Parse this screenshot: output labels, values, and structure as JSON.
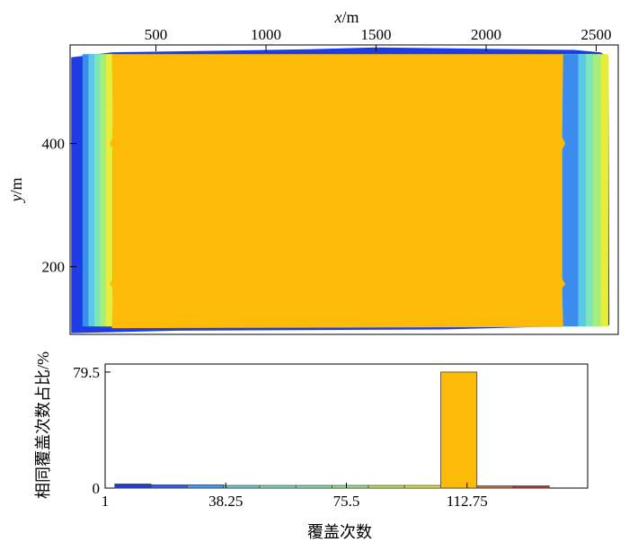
{
  "chart_data": [
    {
      "type": "heatmap",
      "xlabel_var": "x",
      "xlabel_unit": "/m",
      "ylabel_var": "y",
      "ylabel_unit": "/m",
      "xlim": [
        110,
        2600
      ],
      "ylim": [
        90,
        560
      ],
      "x_ticks": [
        500,
        1000,
        1500,
        2000,
        2500
      ],
      "y_ticks": [
        200,
        400
      ],
      "x_axis_position": "top",
      "description_regions": [
        {
          "band": "core",
          "x_range": [
            300,
            2350
          ],
          "y_range": [
            100,
            545
          ],
          "coverage_level": 112.75,
          "color": "#FDBB07"
        },
        {
          "band": "left-edge-gradient",
          "x_range": [
            110,
            300
          ],
          "colors": [
            "#1E3CE6",
            "#3C8CF0",
            "#5AC8E6",
            "#7EE6B8",
            "#A5EE7A",
            "#E6EE3A"
          ]
        },
        {
          "band": "right-edge-gradient",
          "x_range": [
            2350,
            2600
          ],
          "colors": [
            "#E6EE3A",
            "#A5EE7A",
            "#7EE6B8",
            "#5AC8E6",
            "#3C8CF0",
            "#1E3CE6"
          ]
        }
      ]
    },
    {
      "type": "bar",
      "xlabel": "覆盖次数",
      "ylabel": "相同覆盖次数占比/%",
      "xlim": [
        1,
        150.0
      ],
      "ylim": [
        0,
        85
      ],
      "x_ticks": [
        "1",
        "38.25",
        "75.5",
        "112.75"
      ],
      "x_tick_values": [
        1,
        38.25,
        75.5,
        112.75
      ],
      "y_ticks": [
        "0",
        "79.5"
      ],
      "y_tick_values": [
        0,
        79.5
      ],
      "bar_width": 11.175,
      "bins": [
        {
          "start": 4.0,
          "value": 2.8,
          "color": "#1E3CE6"
        },
        {
          "start": 15.18,
          "value": 2.2,
          "color": "#3060E6"
        },
        {
          "start": 26.36,
          "value": 2.2,
          "color": "#4C98EC"
        },
        {
          "start": 37.54,
          "value": 1.8,
          "color": "#6CD0D8"
        },
        {
          "start": 48.72,
          "value": 1.8,
          "color": "#78E6C0"
        },
        {
          "start": 59.9,
          "value": 1.8,
          "color": "#86E8AE"
        },
        {
          "start": 71.08,
          "value": 1.8,
          "color": "#9EEC8A"
        },
        {
          "start": 82.26,
          "value": 1.8,
          "color": "#C2F04E"
        },
        {
          "start": 93.44,
          "value": 1.8,
          "color": "#E4F030"
        },
        {
          "start": 104.62,
          "value": 79.5,
          "color": "#FDBB07"
        },
        {
          "start": 115.8,
          "value": 1.5,
          "color": "#F06018"
        },
        {
          "start": 126.98,
          "value": 1.5,
          "color": "#E02020"
        }
      ]
    }
  ]
}
